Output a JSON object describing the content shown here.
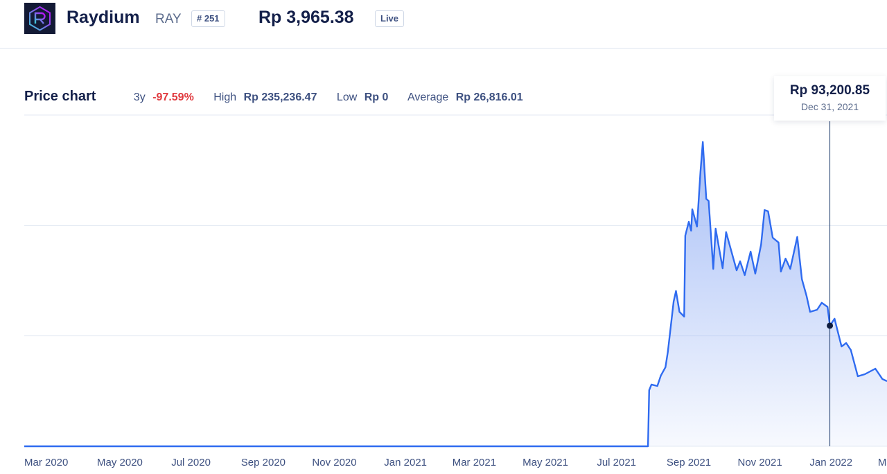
{
  "header": {
    "name": "Raydium",
    "symbol": "RAY",
    "rank": "# 251",
    "price": "Rp 3,965.38",
    "live_label": "Live"
  },
  "stats": {
    "title": "Price chart",
    "period": "3y",
    "change": "-97.59%",
    "high_label": "High",
    "high": "Rp 235,236.47",
    "low_label": "Low",
    "low": "Rp 0",
    "avg_label": "Average",
    "avg": "Rp 26,816.01"
  },
  "tooltip": {
    "price": "Rp 93,200.85",
    "date": "Dec 31, 2021"
  },
  "colors": {
    "line": "#2f6bf0",
    "fill_top": "#9db7f5",
    "negative": "#e0393e",
    "text": "#14204a"
  },
  "chart_data": {
    "type": "area",
    "currency": "Rp",
    "xlim": [
      "2020-02-09",
      "2022-02-18"
    ],
    "ylim": [
      0,
      256000
    ],
    "grid": true,
    "x_ticks": [
      "Mar 2020",
      "May 2020",
      "Jul 2020",
      "Sep 2020",
      "Nov 2020",
      "Jan 2021",
      "Mar 2021",
      "May 2021",
      "Jul 2021",
      "Sep 2021",
      "Nov 2021",
      "Jan 2022",
      "Mar 2022"
    ],
    "x_tick_dates": [
      "2020-03-01",
      "2020-05-01",
      "2020-07-01",
      "2020-09-01",
      "2020-11-01",
      "2021-01-01",
      "2021-03-01",
      "2021-05-01",
      "2021-07-01",
      "2021-09-01",
      "2021-11-01",
      "2022-01-01",
      "2022-03-01"
    ],
    "highlight": {
      "date": "2021-12-31",
      "value": 93200.85
    },
    "points": [
      [
        "2020-02-09",
        0
      ],
      [
        "2021-07-28",
        0
      ],
      [
        "2021-07-29",
        43400
      ],
      [
        "2021-07-31",
        47700
      ],
      [
        "2021-08-05",
        46600
      ],
      [
        "2021-08-08",
        54600
      ],
      [
        "2021-08-12",
        61100
      ],
      [
        "2021-08-14",
        72800
      ],
      [
        "2021-08-19",
        111900
      ],
      [
        "2021-08-21",
        120000
      ],
      [
        "2021-08-24",
        103900
      ],
      [
        "2021-08-28",
        100200
      ],
      [
        "2021-08-29",
        162800
      ],
      [
        "2021-09-01",
        173500
      ],
      [
        "2021-09-03",
        166600
      ],
      [
        "2021-09-04",
        183200
      ],
      [
        "2021-09-08",
        169800
      ],
      [
        "2021-09-11",
        212100
      ],
      [
        "2021-09-13",
        235200
      ],
      [
        "2021-09-16",
        191200
      ],
      [
        "2021-09-18",
        189600
      ],
      [
        "2021-09-22",
        137100
      ],
      [
        "2021-09-24",
        168200
      ],
      [
        "2021-09-30",
        137600
      ],
      [
        "2021-10-03",
        165500
      ],
      [
        "2021-10-12",
        136000
      ],
      [
        "2021-10-15",
        143000
      ],
      [
        "2021-10-19",
        132300
      ],
      [
        "2021-10-24",
        150500
      ],
      [
        "2021-10-28",
        133400
      ],
      [
        "2021-11-02",
        155900
      ],
      [
        "2021-11-05",
        182600
      ],
      [
        "2021-11-08",
        181600
      ],
      [
        "2021-11-12",
        161200
      ],
      [
        "2021-11-17",
        157500
      ],
      [
        "2021-11-19",
        135000
      ],
      [
        "2021-11-23",
        145100
      ],
      [
        "2021-11-27",
        137100
      ],
      [
        "2021-12-03",
        161800
      ],
      [
        "2021-12-07",
        129100
      ],
      [
        "2021-12-11",
        116200
      ],
      [
        "2021-12-14",
        103900
      ],
      [
        "2021-12-20",
        105500
      ],
      [
        "2021-12-24",
        110900
      ],
      [
        "2021-12-29",
        107700
      ],
      [
        "2021-12-31",
        93200.85
      ],
      [
        "2022-01-04",
        98600
      ],
      [
        "2022-01-10",
        77100
      ],
      [
        "2022-01-14",
        79800
      ],
      [
        "2022-01-18",
        74400
      ],
      [
        "2022-01-24",
        54100
      ],
      [
        "2022-01-30",
        55700
      ],
      [
        "2022-02-08",
        60000
      ],
      [
        "2022-02-14",
        52000
      ],
      [
        "2022-02-18",
        50300
      ]
    ]
  }
}
